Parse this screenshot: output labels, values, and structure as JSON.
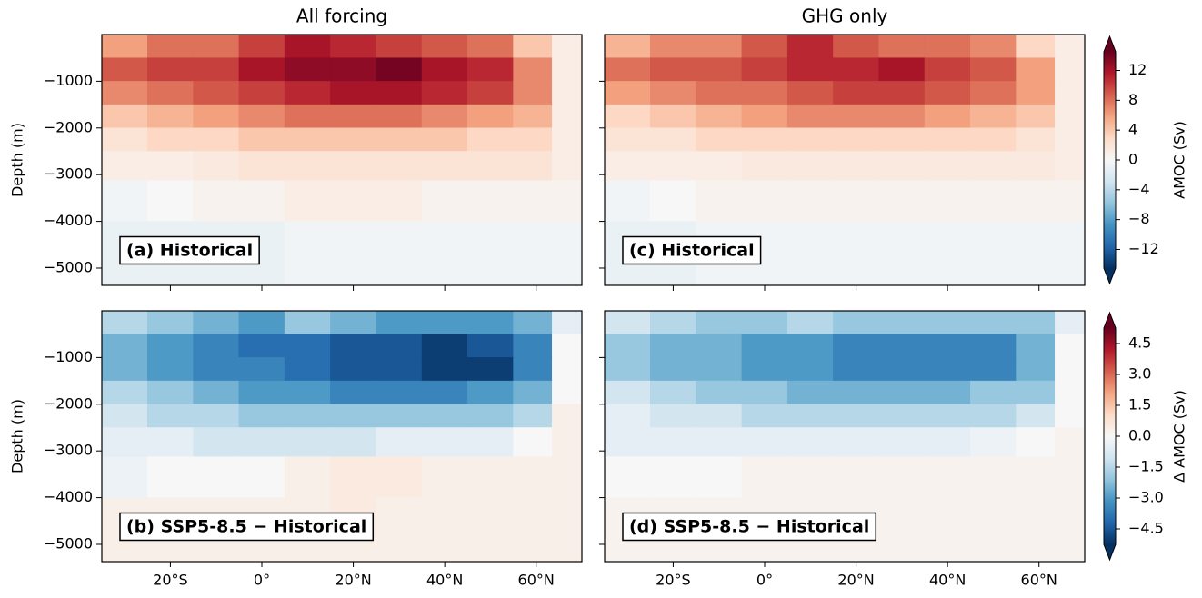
{
  "chart_data": [
    {
      "type": "contour",
      "title": "All forcing",
      "ylabel": "Depth (m)",
      "panel_label": "(a) Historical",
      "x": [
        -30,
        -20,
        -10,
        0,
        10,
        20,
        30,
        40,
        50,
        60,
        67
      ],
      "y": [
        -250,
        -750,
        -1250,
        -1750,
        -2250,
        -2750,
        -3500,
        -4500,
        -5200
      ],
      "z": [
        [
          6,
          8,
          8,
          10,
          12,
          11,
          10,
          9,
          8,
          4,
          1
        ],
        [
          9,
          10,
          10,
          12,
          13,
          13,
          14,
          12,
          11,
          7,
          1
        ],
        [
          7,
          8,
          9,
          10,
          11,
          12,
          12,
          11,
          10,
          7,
          1
        ],
        [
          4,
          5,
          6,
          7,
          8,
          8,
          8,
          7,
          6,
          5,
          1
        ],
        [
          2,
          3,
          3,
          4,
          4,
          4,
          4,
          4,
          3,
          3,
          1
        ],
        [
          1,
          1,
          1.5,
          2,
          2,
          2,
          2,
          2,
          2,
          2,
          1
        ],
        [
          -0.5,
          0,
          0.5,
          0.5,
          1,
          1,
          1,
          0.5,
          0.5,
          0.5,
          0.5
        ],
        [
          -1,
          -1,
          -1,
          -1,
          -0.5,
          -0.5,
          -0.5,
          -0.5,
          -0.5,
          -0.5,
          -0.5
        ],
        [
          -1,
          -1,
          -1,
          -1,
          -0.5,
          -0.5,
          -0.5,
          -0.5,
          -0.5,
          -0.5,
          -0.5
        ]
      ],
      "xlim": [
        -35,
        70
      ],
      "ylim": [
        -5370,
        0
      ],
      "yticks": [
        {
          "value": -1000,
          "label": "−1000"
        },
        {
          "value": -2000,
          "label": "−2000"
        },
        {
          "value": -3000,
          "label": "−3000"
        },
        {
          "value": -4000,
          "label": "−4000"
        },
        {
          "value": -5000,
          "label": "−5000"
        }
      ]
    },
    {
      "type": "contour",
      "title": "GHG only",
      "panel_label": "(c) Historical",
      "x": [
        -30,
        -20,
        -10,
        0,
        10,
        20,
        30,
        40,
        50,
        60,
        67
      ],
      "y": [
        -250,
        -750,
        -1250,
        -1750,
        -2250,
        -2750,
        -3500,
        -4500,
        -5200
      ],
      "z": [
        [
          5,
          7,
          7,
          9,
          11,
          9,
          8,
          8,
          7,
          3,
          1
        ],
        [
          8,
          9,
          9,
          10,
          11,
          11,
          12,
          10,
          9,
          6,
          1
        ],
        [
          6,
          7,
          8,
          8,
          9,
          10,
          10,
          9,
          8,
          6,
          1
        ],
        [
          3,
          4,
          5,
          6,
          7,
          7,
          7,
          6,
          5,
          4,
          1
        ],
        [
          2,
          2,
          3,
          3,
          3,
          3,
          3,
          3,
          3,
          2,
          1
        ],
        [
          1,
          1,
          1,
          1.5,
          1.5,
          1.5,
          1.5,
          1.5,
          1.5,
          1.5,
          1
        ],
        [
          -0.5,
          0,
          0.5,
          0.5,
          0.5,
          0.5,
          0.5,
          0.5,
          0.5,
          0.5,
          0.5
        ],
        [
          -1,
          -1,
          -0.5,
          -0.5,
          -0.5,
          -0.5,
          -0.5,
          -0.5,
          -0.5,
          -0.5,
          -0.5
        ],
        [
          -1,
          -1,
          -0.5,
          -0.5,
          -0.5,
          -0.5,
          -0.5,
          -0.5,
          -0.5,
          -0.5,
          -0.5
        ]
      ],
      "xlim": [
        -35,
        70
      ],
      "ylim": [
        -5370,
        0
      ],
      "colorbar": {
        "label": "AMOC (Sv)",
        "lim": [
          -14.5,
          14.5
        ],
        "ticks": [
          {
            "value": -12,
            "label": "−12"
          },
          {
            "value": -8,
            "label": "−8"
          },
          {
            "value": -4,
            "label": "−4"
          },
          0,
          4,
          8,
          12
        ],
        "colormap": [
          "#053061",
          "#2166ac",
          "#4393c3",
          "#92c5de",
          "#d1e5f0",
          "#f7f7f7",
          "#fddbc7",
          "#f4a582",
          "#d6604d",
          "#b2182b",
          "#67001f"
        ]
      }
    },
    {
      "type": "contour",
      "ylabel": "Depth (m)",
      "panel_label": "(b) SSP5-8.5 − Historical",
      "x": [
        -30,
        -20,
        -10,
        0,
        10,
        20,
        30,
        40,
        50,
        60,
        67
      ],
      "y": [
        -250,
        -750,
        -1250,
        -1750,
        -2250,
        -2750,
        -3500,
        -4500,
        -5200
      ],
      "z": [
        [
          -1.5,
          -2,
          -2.5,
          -3,
          -2,
          -2.5,
          -3,
          -3,
          -3,
          -2.5,
          -0.5
        ],
        [
          -2.5,
          -3,
          -3.5,
          -4,
          -4,
          -4.5,
          -4.5,
          -5,
          -4.5,
          -3.5,
          0
        ],
        [
          -2.5,
          -3,
          -3.5,
          -3.5,
          -4,
          -4.5,
          -4.5,
          -5,
          -5,
          -3.5,
          0
        ],
        [
          -1.5,
          -2,
          -2.5,
          -3,
          -3,
          -3.5,
          -3.5,
          -3.5,
          -3,
          -2.5,
          0
        ],
        [
          -1,
          -1.5,
          -1.5,
          -2,
          -2,
          -2,
          -2,
          -2,
          -2,
          -1.5,
          0.3
        ],
        [
          -0.5,
          -0.5,
          -1,
          -1,
          -1,
          -1,
          -0.5,
          -0.5,
          -0.5,
          0,
          0.3
        ],
        [
          -0.3,
          0,
          0,
          0,
          0.3,
          0.5,
          0.5,
          0.3,
          0.3,
          0.3,
          0.3
        ],
        [
          0.3,
          0.3,
          0.3,
          0.3,
          0.3,
          0.5,
          0.3,
          0.3,
          0.3,
          0.3,
          0.3
        ],
        [
          0.3,
          0.3,
          0.3,
          0.3,
          0.3,
          0.3,
          0.3,
          0.3,
          0.3,
          0.3,
          0.3
        ]
      ],
      "xlim": [
        -35,
        70
      ],
      "ylim": [
        -5370,
        0
      ],
      "xticks": [
        {
          "value": -20,
          "label": "20°S"
        },
        {
          "value": 0,
          "label": "0°"
        },
        {
          "value": 20,
          "label": "20°N"
        },
        {
          "value": 40,
          "label": "40°N"
        },
        {
          "value": 60,
          "label": "60°N"
        }
      ],
      "yticks": [
        {
          "value": -1000,
          "label": "−1000"
        },
        {
          "value": -2000,
          "label": "−2000"
        },
        {
          "value": -3000,
          "label": "−3000"
        },
        {
          "value": -4000,
          "label": "−4000"
        },
        {
          "value": -5000,
          "label": "−5000"
        }
      ]
    },
    {
      "type": "contour",
      "panel_label": "(d) SSP5-8.5 − Historical",
      "x": [
        -30,
        -20,
        -10,
        0,
        10,
        20,
        30,
        40,
        50,
        60,
        67
      ],
      "y": [
        -250,
        -750,
        -1250,
        -1750,
        -2250,
        -2750,
        -3500,
        -4500,
        -5200
      ],
      "z": [
        [
          -1,
          -1.5,
          -2,
          -2,
          -1.5,
          -2,
          -2,
          -2,
          -2,
          -2,
          -0.5
        ],
        [
          -2,
          -2.5,
          -2.5,
          -3,
          -3,
          -3.5,
          -3.5,
          -3.5,
          -3.5,
          -2.5,
          0
        ],
        [
          -2,
          -2.5,
          -2.5,
          -3,
          -3,
          -3.5,
          -3.5,
          -3.5,
          -3.5,
          -2.5,
          0
        ],
        [
          -1,
          -1.5,
          -2,
          -2,
          -2.5,
          -2.5,
          -2.5,
          -2.5,
          -2,
          -2,
          0
        ],
        [
          -0.5,
          -1,
          -1,
          -1.5,
          -1.5,
          -1.5,
          -1.5,
          -1.5,
          -1.5,
          -1,
          0
        ],
        [
          -0.5,
          -0.5,
          -0.5,
          -0.5,
          -0.5,
          -0.5,
          -0.5,
          -0.5,
          -0.3,
          0,
          0.2
        ],
        [
          0,
          0,
          0,
          0.2,
          0.2,
          0.2,
          0.2,
          0.2,
          0.2,
          0.2,
          0.2
        ],
        [
          0.2,
          0.2,
          0.2,
          0.2,
          0.2,
          0.2,
          0.2,
          0.2,
          0.2,
          0.2,
          0.2
        ],
        [
          0.2,
          0.2,
          0.2,
          0.2,
          0.2,
          0.2,
          0.2,
          0.2,
          0.2,
          0.2,
          0.2
        ]
      ],
      "xlim": [
        -35,
        70
      ],
      "ylim": [
        -5370,
        0
      ],
      "xticks": [
        {
          "value": -20,
          "label": "20°S"
        },
        {
          "value": 0,
          "label": "0°"
        },
        {
          "value": 20,
          "label": "20°N"
        },
        {
          "value": 40,
          "label": "40°N"
        },
        {
          "value": 60,
          "label": "60°N"
        }
      ],
      "colorbar": {
        "label": "Δ AMOC (Sv)",
        "lim": [
          -5.25,
          5.25
        ],
        "ticks": [
          {
            "value": -4.5,
            "label": "−4.5"
          },
          {
            "value": -3,
            "label": "−3.0"
          },
          {
            "value": -1.5,
            "label": "−1.5"
          },
          {
            "value": 0,
            "label": "0.0"
          },
          1.5,
          {
            "value": 3,
            "label": "3.0"
          },
          4.5
        ],
        "colormap": [
          "#053061",
          "#2166ac",
          "#4393c3",
          "#92c5de",
          "#d1e5f0",
          "#f7f7f7",
          "#fddbc7",
          "#f4a582",
          "#d6604d",
          "#b2182b",
          "#67001f"
        ]
      }
    }
  ]
}
